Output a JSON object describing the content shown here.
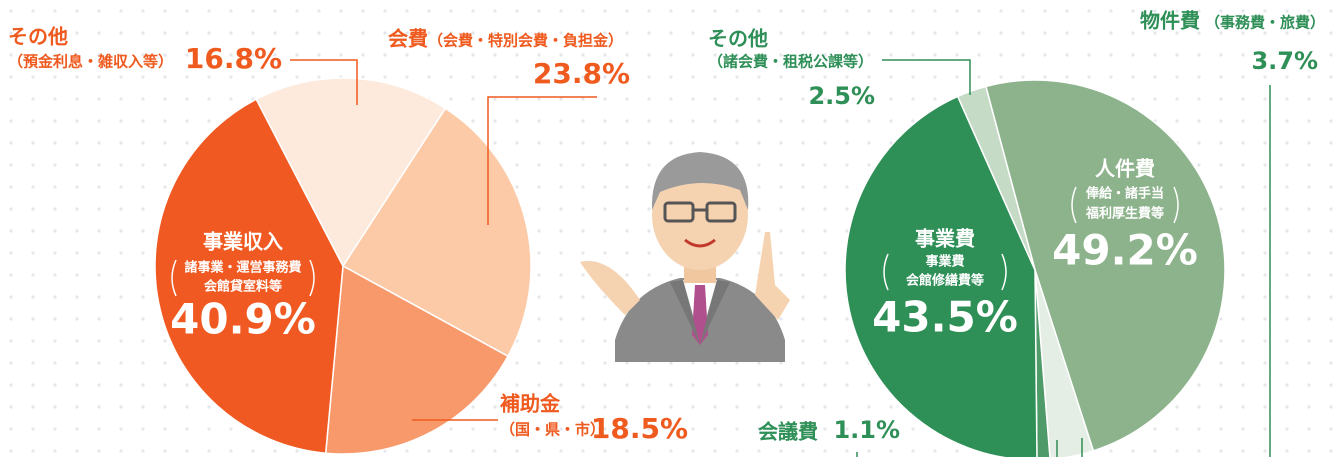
{
  "chart_data": [
    {
      "type": "pie",
      "categories": [
        "会費",
        "補助金",
        "事業収入",
        "その他"
      ],
      "sublabels": [
        [
          "（会費・特別会費・負担金）"
        ],
        [
          "（国・県・市）"
        ],
        [
          "諸事業・運営事務費",
          "会館貸室料等"
        ],
        [
          "（預金利息・雑収入等）"
        ]
      ],
      "values": [
        23.8,
        18.5,
        40.9,
        16.8
      ],
      "value_labels": [
        "23.8%",
        "18.5%",
        "40.9%",
        "16.8%"
      ],
      "colors": [
        "#fccaa6",
        "#f7996a",
        "#f05a22",
        "#fdeadc"
      ]
    },
    {
      "type": "pie",
      "categories": [
        "人件費",
        "物件費",
        "会議費",
        "事業費",
        "その他"
      ],
      "sublabels": [
        [
          "俸給・諸手当",
          "福利厚生費等"
        ],
        [
          "（事務費・旅費）"
        ],
        [],
        [
          "事業費",
          "会館修繕費等"
        ],
        [
          "（諸会費・租税公課等）"
        ]
      ],
      "values": [
        49.2,
        3.7,
        1.1,
        43.5,
        2.5
      ],
      "value_labels": [
        "49.2%",
        "3.7%",
        "1.1%",
        "43.5%",
        "2.5%"
      ],
      "colors": [
        "#8db38c",
        "#e4eee4",
        "#4e9a68",
        "#2e8f57",
        "#c6dbc6"
      ]
    }
  ]
}
